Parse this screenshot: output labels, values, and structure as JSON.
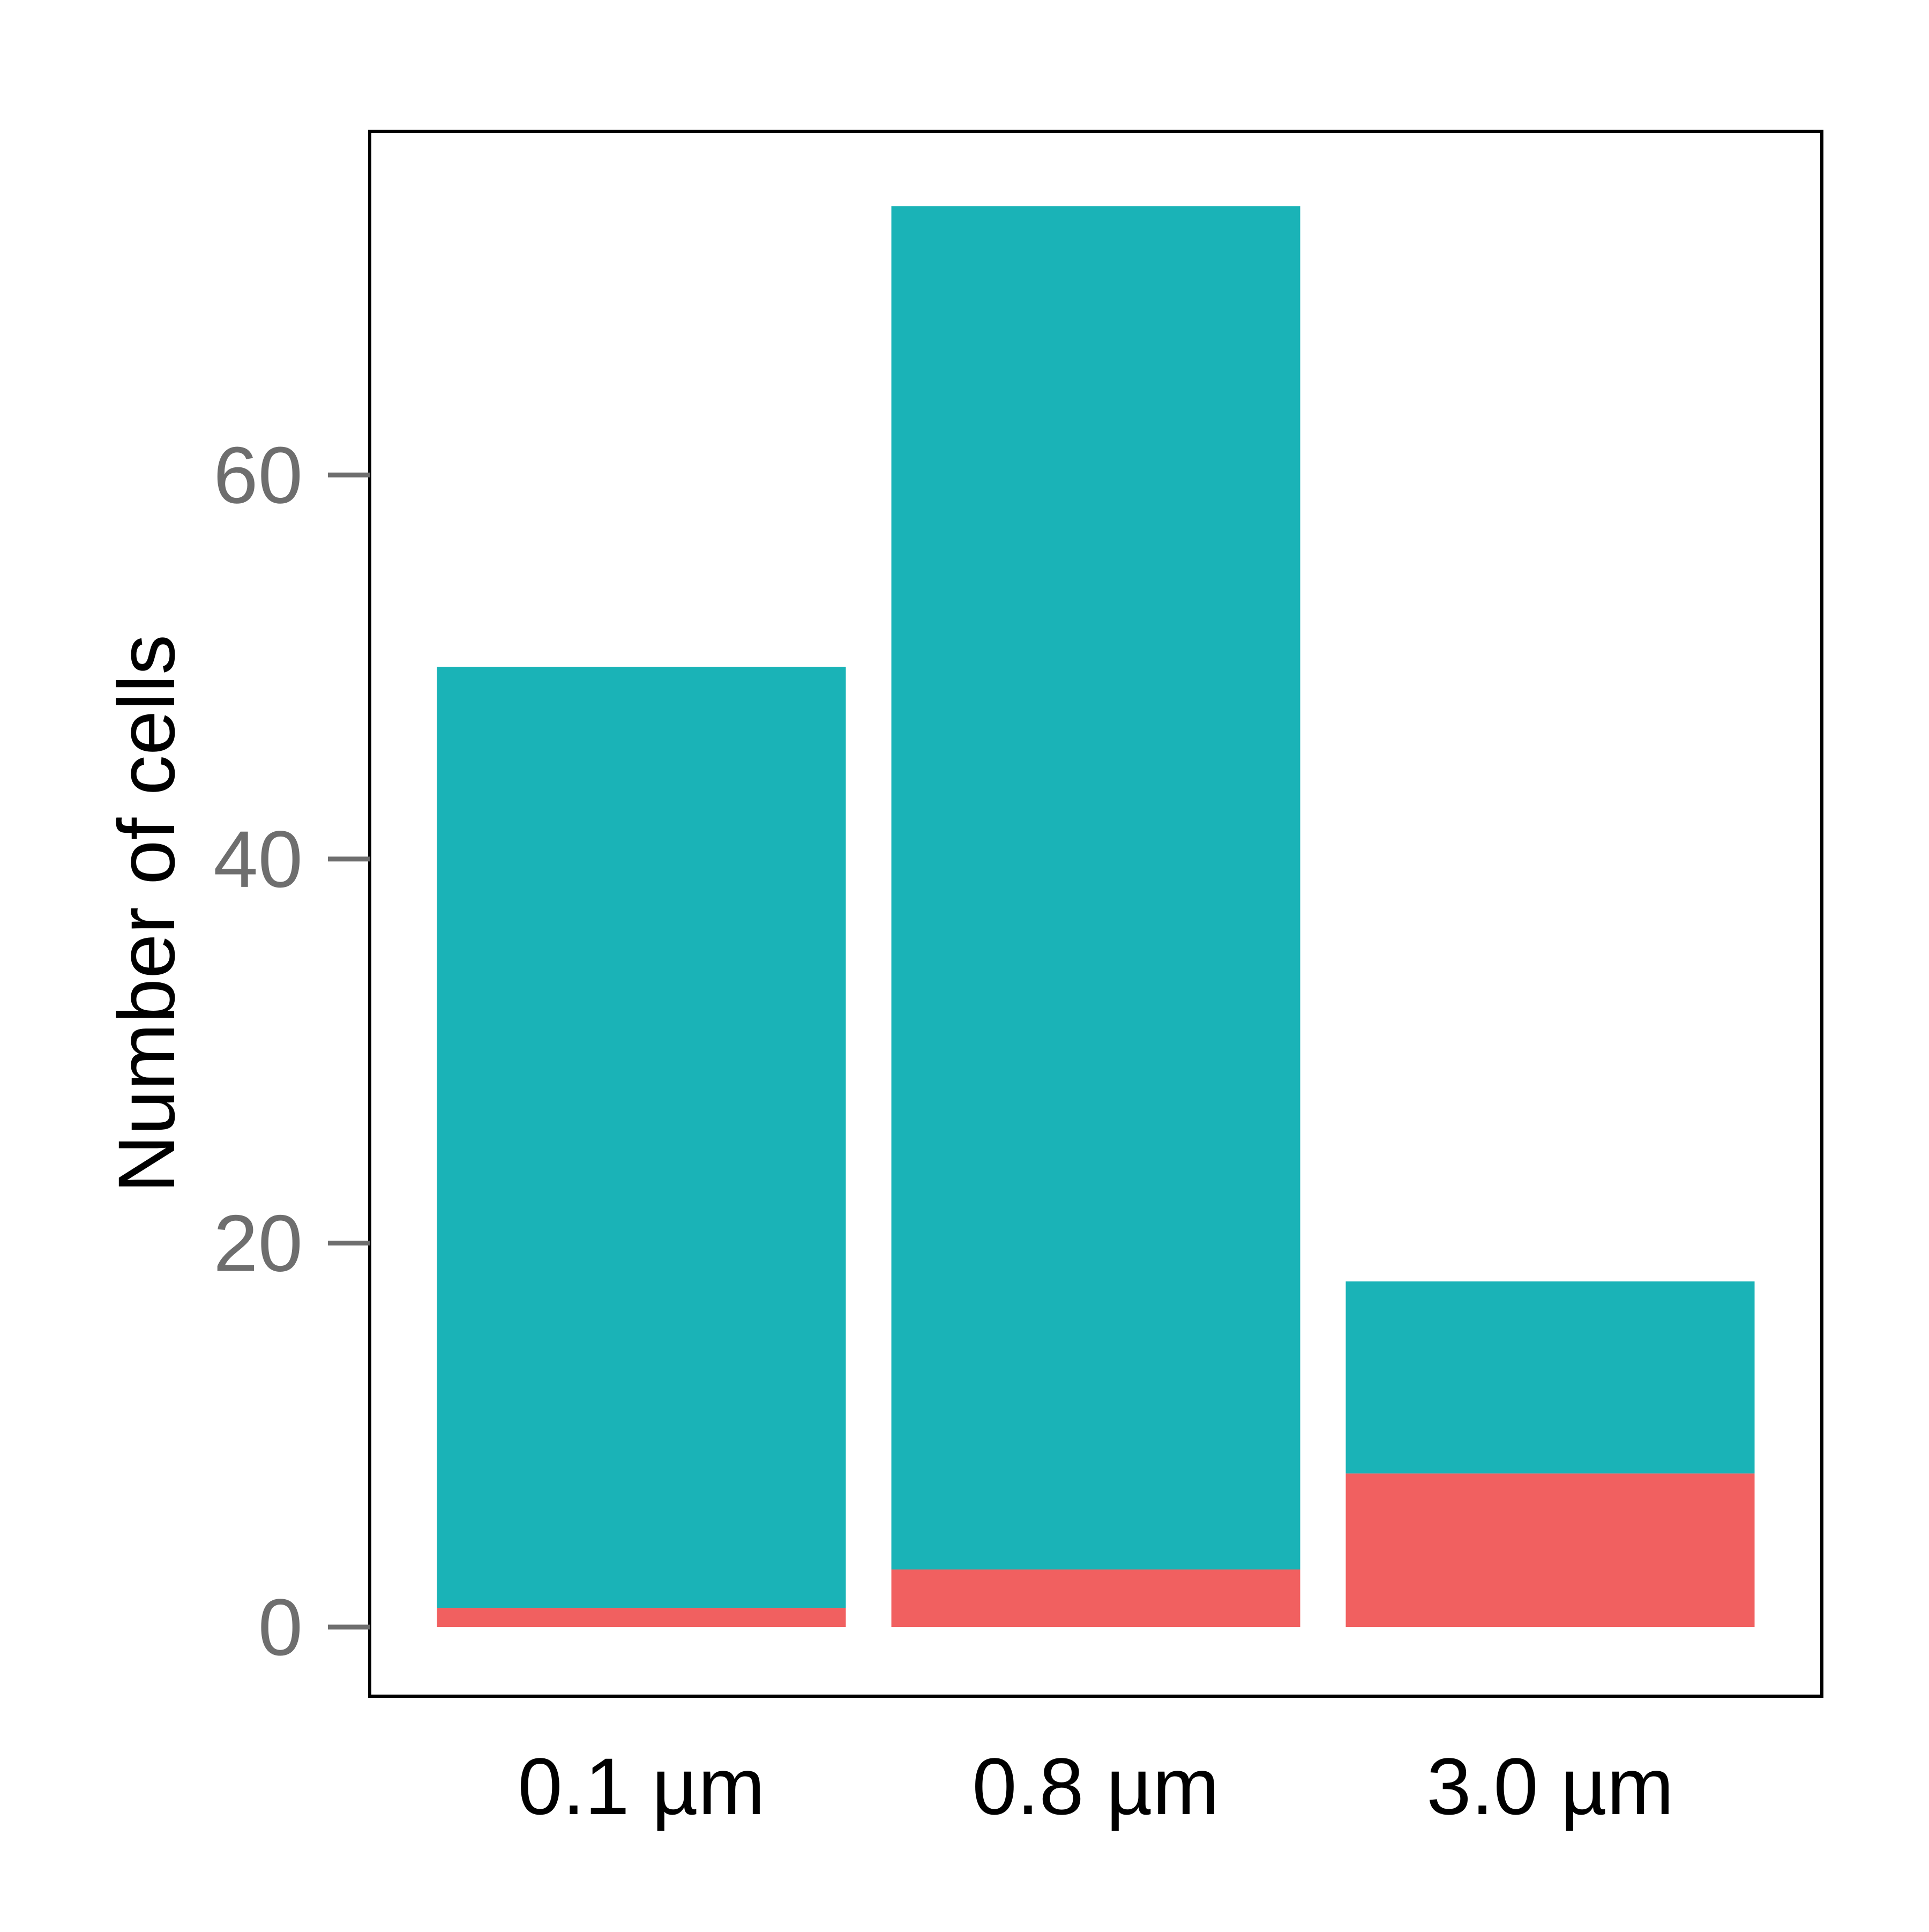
{
  "chart_data": {
    "type": "bar",
    "stacked": true,
    "title": "",
    "xlabel": "",
    "ylabel": "Number of cells",
    "categories": [
      "0.1 µm",
      "0.8 µm",
      "3.0 µm"
    ],
    "series": [
      {
        "color": "#F16060",
        "values": [
          1,
          3,
          8
        ]
      },
      {
        "color": "#1AB3B7",
        "values": [
          49,
          71,
          10
        ]
      }
    ],
    "ylim": [
      -3.6,
      77.9
    ],
    "yticks": [
      0,
      20,
      40,
      60
    ],
    "ytick_labels": [
      "0",
      "20",
      "40",
      "60"
    ],
    "grid": false,
    "legend": "none",
    "colors": {
      "axis_text": "#6E6E6E",
      "tick_mark": "#6E6E6E",
      "frame": "#000000",
      "label_text": "#000000"
    }
  }
}
